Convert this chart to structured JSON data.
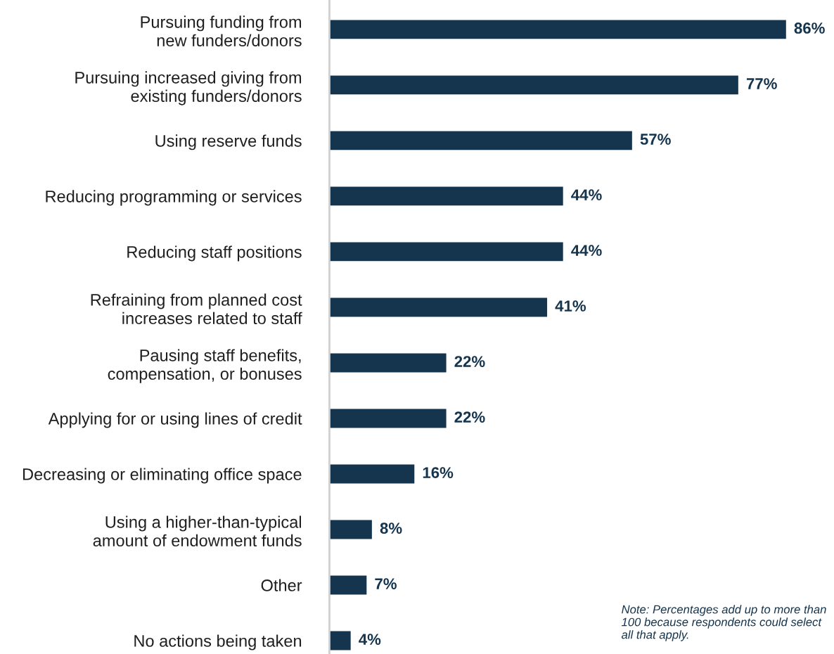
{
  "chart_data": {
    "type": "bar",
    "orientation": "horizontal",
    "categories": [
      "Pursuing funding from\nnew funders/donors",
      "Pursuing increased giving from\nexisting funders/donors",
      "Using reserve funds",
      "Reducing programming or services",
      "Reducing staff positions",
      "Refraining from planned cost\nincreases related to staff",
      "Pausing staff benefits,\ncompensation, or bonuses",
      "Applying for or using lines of credit",
      "Decreasing or eliminating office space",
      "Using a higher-than-typical\namount of endowment funds",
      "Other",
      "No actions being taken"
    ],
    "values": [
      86,
      77,
      57,
      44,
      44,
      41,
      22,
      22,
      16,
      8,
      7,
      4
    ],
    "value_labels": [
      "86%",
      "77%",
      "57%",
      "44%",
      "44%",
      "41%",
      "22%",
      "22%",
      "16%",
      "8%",
      "7%",
      "4%"
    ],
    "color": "#15354f",
    "grid": false,
    "legend": false,
    "annotations": [
      "Note: Percentages add up to more than 100 because respondents could select all that apply."
    ]
  }
}
